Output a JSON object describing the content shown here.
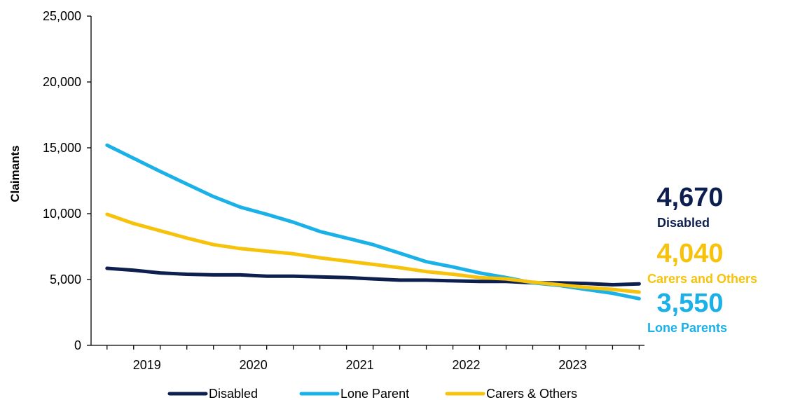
{
  "chart_data": {
    "type": "line",
    "ylabel": "Claimants",
    "ylim": [
      0,
      25000
    ],
    "yticks": [
      0,
      5000,
      10000,
      15000,
      20000,
      25000
    ],
    "ytick_labels": [
      "0",
      "5,000",
      "10,000",
      "15,000",
      "20,000",
      "25,000"
    ],
    "xlim": [
      2018.6,
      2023.8
    ],
    "xtick_labels": [
      "2019",
      "2020",
      "2021",
      "2022",
      "2023"
    ],
    "grid": false,
    "legend_position": "bottom",
    "x": [
      2018.75,
      2019,
      2019.25,
      2019.5,
      2019.75,
      2020,
      2020.25,
      2020.5,
      2020.75,
      2021,
      2021.25,
      2021.5,
      2021.75,
      2022,
      2022.25,
      2022.5,
      2022.75,
      2023,
      2023.25,
      2023.5,
      2023.75
    ],
    "series": [
      {
        "name": "Disabled",
        "color": "#0d1f4f",
        "values": [
          5850,
          5700,
          5500,
          5400,
          5350,
          5350,
          5250,
          5250,
          5200,
          5150,
          5050,
          4950,
          4950,
          4900,
          4850,
          4850,
          4750,
          4750,
          4700,
          4600,
          4670
        ]
      },
      {
        "name": "Lone Parent",
        "color": "#1ab0e8",
        "values": [
          15200,
          14200,
          13200,
          12250,
          11300,
          10500,
          9950,
          9350,
          8650,
          8150,
          7650,
          7000,
          6350,
          5950,
          5500,
          5150,
          4750,
          4550,
          4250,
          3950,
          3550
        ]
      },
      {
        "name": "Carers & Others",
        "color": "#f7c20c",
        "values": [
          9950,
          9250,
          8700,
          8150,
          7650,
          7350,
          7150,
          6950,
          6650,
          6400,
          6150,
          5900,
          5600,
          5400,
          5150,
          5050,
          4800,
          4600,
          4400,
          4250,
          4040
        ]
      }
    ],
    "end_labels": [
      {
        "value": "4,670",
        "name": "Disabled",
        "color": "#0d1f4f"
      },
      {
        "value": "4,040",
        "name": "Carers and Others",
        "color": "#f7c20c"
      },
      {
        "value": "3,550",
        "name": "Lone Parents",
        "color": "#1ab0e8"
      }
    ]
  }
}
